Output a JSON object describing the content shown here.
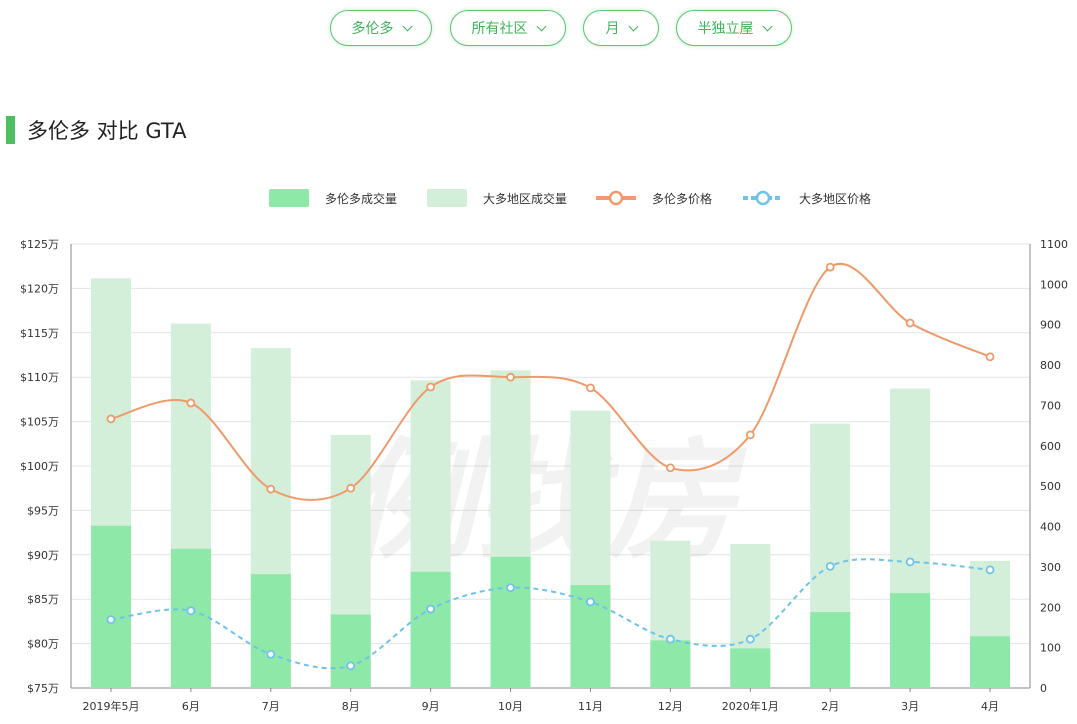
{
  "filters": [
    {
      "label": "多伦多"
    },
    {
      "label": "所有社区"
    },
    {
      "label": "月"
    },
    {
      "label": "半独立屋"
    }
  ],
  "section": {
    "title": "多伦多 对比 GTA"
  },
  "watermark": "例找房",
  "colors": {
    "accent": "#4cbf5e",
    "toronto_volume": "#8ee8a8",
    "gta_volume": "#d3efda",
    "toronto_price": "#ef9a6b",
    "gta_price": "#6ec3ea"
  },
  "chart_data": {
    "type": "bar",
    "categories": [
      "2019年5月",
      "6月",
      "7月",
      "8月",
      "9月",
      "10月",
      "11月",
      "12月",
      "2020年1月",
      "2月",
      "3月",
      "4月"
    ],
    "series": [
      {
        "name": "多伦多成交量",
        "kind": "bar",
        "axis": "right",
        "values": [
          402,
          345,
          282,
          182,
          288,
          325,
          255,
          118,
          98,
          188,
          235,
          128
        ]
      },
      {
        "name": "大多地区成交量",
        "kind": "bar",
        "axis": "right",
        "values": [
          1015,
          903,
          842,
          627,
          762,
          787,
          687,
          365,
          357,
          655,
          742,
          315
        ]
      },
      {
        "name": "多伦多价格",
        "kind": "line",
        "axis": "left",
        "style": "solid",
        "values": [
          105.3,
          107.1,
          97.4,
          97.5,
          108.9,
          110.0,
          108.8,
          99.8,
          103.5,
          122.4,
          116.1,
          112.3
        ]
      },
      {
        "name": "大多地区价格",
        "kind": "line",
        "axis": "left",
        "style": "dashed",
        "values": [
          82.7,
          83.7,
          78.8,
          77.5,
          83.9,
          86.3,
          84.7,
          80.5,
          80.5,
          88.7,
          89.2,
          88.3
        ]
      }
    ],
    "y_left": {
      "min": 75,
      "max": 125,
      "step": 5,
      "tick_labels": [
        "$75万",
        "$80万",
        "$85万",
        "$90万",
        "$95万",
        "$100万",
        "$105万",
        "$110万",
        "$115万",
        "$120万",
        "$125万"
      ]
    },
    "y_right": {
      "min": 0,
      "max": 1100,
      "step": 100,
      "tick_labels": [
        "0",
        "100",
        "200",
        "300",
        "400",
        "500",
        "600",
        "700",
        "800",
        "900",
        "1000",
        "1100"
      ]
    },
    "legend_position": "top-center",
    "grid": true
  }
}
